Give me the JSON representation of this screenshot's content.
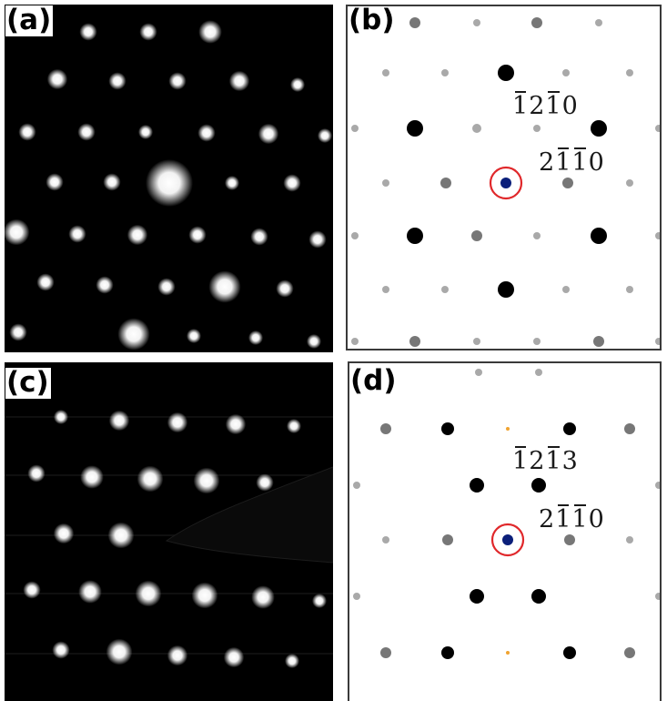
{
  "panels": {
    "a": {
      "label": "(a)"
    },
    "b": {
      "label": "(b)",
      "index_upper": "1210",
      "index_lower": "2110"
    },
    "c": {
      "label": "(c)"
    },
    "d": {
      "label": "(d)",
      "index_upper": "1213",
      "index_lower": "2110"
    }
  },
  "colors": {
    "spot_dark": "#000000",
    "spot_gray": "#777777",
    "spot_light": "#a9a9a9",
    "center_spot": "#0b1f7a",
    "center_ring": "#e0282b",
    "forbidden_spot": "#f0a330"
  }
}
